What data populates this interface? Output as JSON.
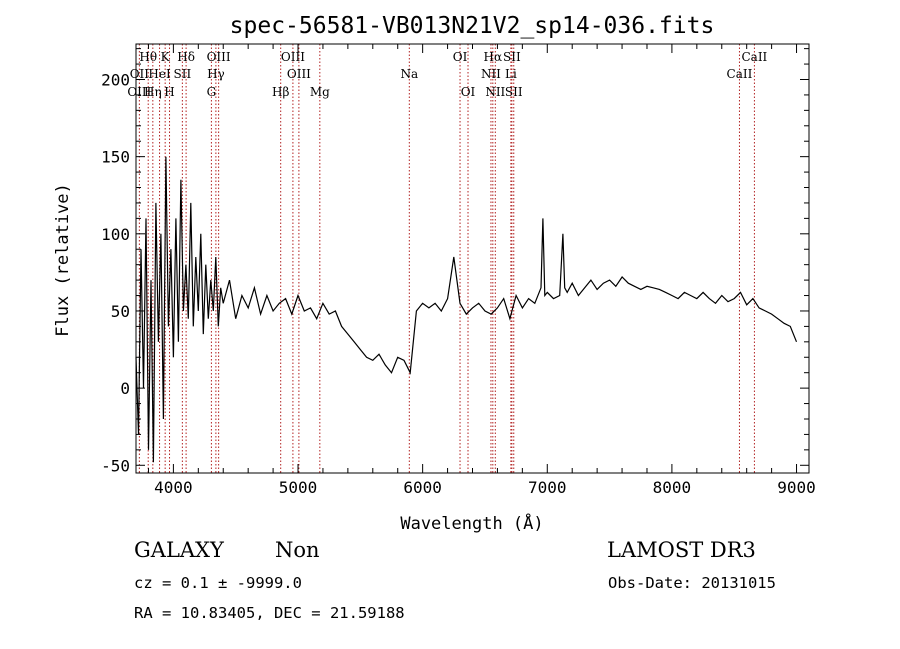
{
  "chart_data": {
    "type": "line",
    "title": "spec-56581-VB013N21V2_sp14-036.fits",
    "xlabel": "Wavelength (Å)",
    "ylabel": "Flux (relative)",
    "xlim": [
      3700,
      9100
    ],
    "ylim": [
      -55,
      223
    ],
    "xticks": [
      4000,
      5000,
      6000,
      7000,
      8000,
      9000
    ],
    "yticks": [
      -50,
      0,
      50,
      100,
      150,
      200
    ],
    "grid": false,
    "series": [
      {
        "x": [
          3700,
          3720,
          3740,
          3760,
          3780,
          3800,
          3820,
          3840,
          3860,
          3880,
          3900,
          3920,
          3940,
          3960,
          3980,
          4000,
          4020,
          4040,
          4060,
          4080,
          4100,
          4120,
          4140,
          4160,
          4180,
          4200,
          4220,
          4240,
          4260,
          4280,
          4300,
          4320,
          4340,
          4360,
          4380,
          4400,
          4450,
          4500,
          4550,
          4600,
          4650,
          4700,
          4750,
          4800,
          4850,
          4900,
          4950,
          5000,
          5050,
          5100,
          5150,
          5200,
          5250,
          5300,
          5350,
          5400,
          5450,
          5500,
          5550,
          5600,
          5650,
          5700,
          5750,
          5800,
          5850,
          5900,
          5950,
          6000,
          6050,
          6100,
          6150,
          6200,
          6250,
          6300,
          6350,
          6400,
          6450,
          6500,
          6550,
          6600,
          6650,
          6700,
          6750,
          6800,
          6850,
          6900,
          6950,
          6965,
          6980,
          7000,
          7050,
          7100,
          7125,
          7140,
          7160,
          7200,
          7250,
          7300,
          7350,
          7400,
          7450,
          7500,
          7550,
          7600,
          7650,
          7700,
          7750,
          7800,
          7850,
          7900,
          7950,
          8000,
          8050,
          8100,
          8150,
          8200,
          8250,
          8300,
          8350,
          8400,
          8450,
          8500,
          8550,
          8600,
          8650,
          8700,
          8750,
          8800,
          8850,
          8900,
          8950,
          9000
        ],
        "y": [
          20,
          -30,
          90,
          0,
          110,
          -40,
          70,
          -48,
          120,
          30,
          100,
          -20,
          150,
          40,
          90,
          20,
          110,
          30,
          135,
          50,
          80,
          45,
          120,
          40,
          85,
          50,
          100,
          35,
          80,
          45,
          70,
          50,
          85,
          40,
          65,
          55,
          70,
          45,
          60,
          52,
          65,
          48,
          60,
          50,
          55,
          58,
          48,
          60,
          50,
          52,
          45,
          55,
          48,
          50,
          40,
          35,
          30,
          25,
          20,
          18,
          22,
          15,
          10,
          20,
          18,
          10,
          50,
          55,
          52,
          55,
          50,
          58,
          85,
          55,
          48,
          52,
          55,
          50,
          48,
          52,
          58,
          45,
          60,
          52,
          58,
          55,
          65,
          110,
          60,
          62,
          58,
          60,
          100,
          65,
          62,
          68,
          60,
          65,
          70,
          64,
          68,
          70,
          66,
          72,
          68,
          66,
          64,
          66,
          65,
          64,
          62,
          60,
          58,
          62,
          60,
          58,
          62,
          58,
          55,
          60,
          56,
          58,
          62,
          54,
          58,
          52,
          50,
          48,
          45,
          42,
          40,
          30
        ]
      }
    ],
    "line_markers": [
      {
        "label": "OII",
        "wave": 3727,
        "row": 1
      },
      {
        "label": "OIII",
        "wave": 3727,
        "row": 2
      },
      {
        "label": "Hθ",
        "wave": 3798,
        "row": 0
      },
      {
        "label": "Hη",
        "wave": 3835,
        "row": 2
      },
      {
        "label": "HeI",
        "wave": 3889,
        "row": 1
      },
      {
        "label": "K",
        "wave": 3934,
        "row": 0
      },
      {
        "label": "H",
        "wave": 3969,
        "row": 2
      },
      {
        "label": "Hδ",
        "wave": 4102,
        "row": 0
      },
      {
        "label": "SII",
        "wave": 4072,
        "row": 1
      },
      {
        "label": "OIII",
        "wave": 4363,
        "row": 0
      },
      {
        "label": "Hγ",
        "wave": 4341,
        "row": 1
      },
      {
        "label": "G",
        "wave": 4305,
        "row": 2
      },
      {
        "label": "OIII",
        "wave": 4959,
        "row": 0
      },
      {
        "label": "OIII",
        "wave": 5007,
        "row": 1
      },
      {
        "label": "Hβ",
        "wave": 4861,
        "row": 2
      },
      {
        "label": "Mg",
        "wave": 5175,
        "row": 2
      },
      {
        "label": "Na",
        "wave": 5893,
        "row": 1
      },
      {
        "label": "OI",
        "wave": 6300,
        "row": 0
      },
      {
        "label": "OI",
        "wave": 6364,
        "row": 2
      },
      {
        "label": "Hα",
        "wave": 6563,
        "row": 0
      },
      {
        "label": "NII",
        "wave": 6548,
        "row": 1
      },
      {
        "label": "NII",
        "wave": 6583,
        "row": 2
      },
      {
        "label": "SII",
        "wave": 6716,
        "row": 0
      },
      {
        "label": "Li",
        "wave": 6708,
        "row": 1
      },
      {
        "label": "SII",
        "wave": 6731,
        "row": 2
      },
      {
        "label": "CaII",
        "wave": 8662,
        "row": 0
      },
      {
        "label": "CaII",
        "wave": 8542,
        "row": 1
      }
    ],
    "colors": {
      "spectrum": "#000000",
      "marker_line": "#b22222",
      "axes": "#000000"
    }
  },
  "info": {
    "class": "GALAXY",
    "subclass": "Non",
    "survey": "LAMOST DR3",
    "cz": "cz = 0.1 ± -9999.0",
    "obs_date": "Obs-Date: 20131015",
    "radec": "RA =  10.83405, DEC =  21.59188"
  }
}
